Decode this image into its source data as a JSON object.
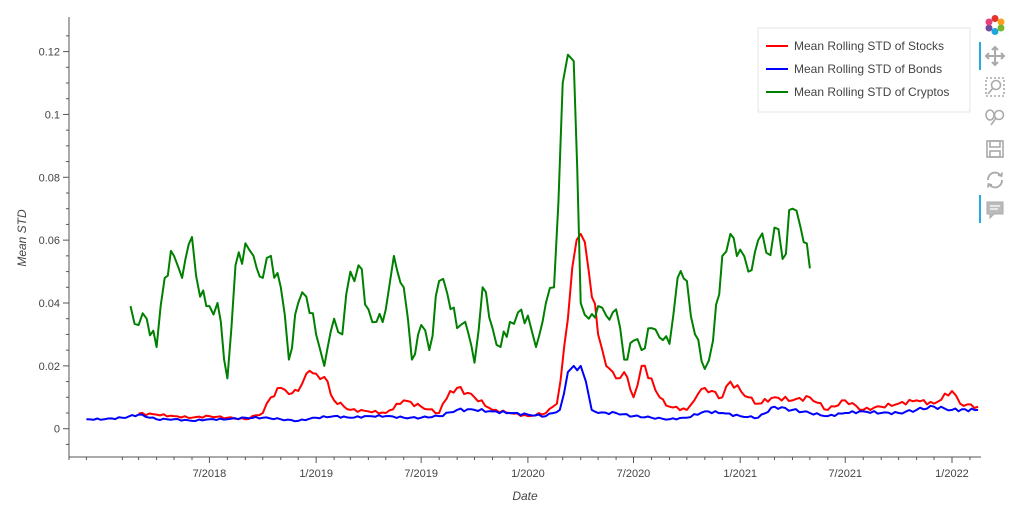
{
  "chart_data": {
    "type": "line",
    "xlabel": "Date",
    "ylabel": "Mean STD",
    "xlim": [
      "2017-11-01",
      "2022-02-20"
    ],
    "ylim": [
      -0.009,
      0.131
    ],
    "x_ticks": [
      "7/2018",
      "1/2019",
      "7/2019",
      "1/2020",
      "7/2020",
      "1/2021",
      "7/2021",
      "1/2022"
    ],
    "y_ticks": [
      "0",
      "0.02",
      "0.04",
      "0.06",
      "0.08",
      "0.1",
      "0.12"
    ],
    "legend_position": "top-right",
    "grid": false,
    "series": [
      {
        "name": "Mean Rolling STD of Stocks",
        "color": "#ff0000",
        "points": [
          [
            "2018-03-01",
            0.0048
          ],
          [
            "2018-04-01",
            0.0045
          ],
          [
            "2018-05-01",
            0.004
          ],
          [
            "2018-06-01",
            0.0035
          ],
          [
            "2018-07-01",
            0.004
          ],
          [
            "2018-08-01",
            0.0035
          ],
          [
            "2018-09-01",
            0.003
          ],
          [
            "2018-10-01",
            0.005
          ],
          [
            "2018-10-15",
            0.01
          ],
          [
            "2018-11-01",
            0.013
          ],
          [
            "2018-11-15",
            0.011
          ],
          [
            "2018-12-01",
            0.012
          ],
          [
            "2018-12-15",
            0.0175
          ],
          [
            "2019-01-01",
            0.0175
          ],
          [
            "2019-01-15",
            0.0165
          ],
          [
            "2019-02-01",
            0.009
          ],
          [
            "2019-03-01",
            0.006
          ],
          [
            "2019-04-01",
            0.0055
          ],
          [
            "2019-05-01",
            0.005
          ],
          [
            "2019-06-01",
            0.009
          ],
          [
            "2019-07-01",
            0.007
          ],
          [
            "2019-08-01",
            0.005
          ],
          [
            "2019-08-20",
            0.012
          ],
          [
            "2019-09-01",
            0.013
          ],
          [
            "2019-10-01",
            0.01
          ],
          [
            "2019-11-01",
            0.006
          ],
          [
            "2019-12-01",
            0.005
          ],
          [
            "2020-01-01",
            0.004
          ],
          [
            "2020-02-01",
            0.005
          ],
          [
            "2020-02-20",
            0.008
          ],
          [
            "2020-03-10",
            0.035
          ],
          [
            "2020-03-25",
            0.06
          ],
          [
            "2020-04-01",
            0.062
          ],
          [
            "2020-04-15",
            0.05
          ],
          [
            "2020-05-01",
            0.03
          ],
          [
            "2020-05-15",
            0.02
          ],
          [
            "2020-06-01",
            0.016
          ],
          [
            "2020-06-15",
            0.018
          ],
          [
            "2020-07-01",
            0.01
          ],
          [
            "2020-07-15",
            0.02
          ],
          [
            "2020-08-01",
            0.016
          ],
          [
            "2020-08-15",
            0.01
          ],
          [
            "2020-09-01",
            0.007
          ],
          [
            "2020-10-01",
            0.006
          ],
          [
            "2020-10-20",
            0.011
          ],
          [
            "2020-11-01",
            0.013
          ],
          [
            "2020-12-01",
            0.01
          ],
          [
            "2020-12-15",
            0.015
          ],
          [
            "2021-01-15",
            0.01
          ],
          [
            "2021-02-01",
            0.008
          ],
          [
            "2021-03-01",
            0.01
          ],
          [
            "2021-04-01",
            0.009
          ],
          [
            "2021-05-01",
            0.01
          ],
          [
            "2021-06-01",
            0.006
          ],
          [
            "2021-07-01",
            0.009
          ],
          [
            "2021-08-01",
            0.006
          ],
          [
            "2021-09-01",
            0.007
          ],
          [
            "2021-10-01",
            0.008
          ],
          [
            "2021-11-01",
            0.009
          ],
          [
            "2021-12-01",
            0.008
          ],
          [
            "2022-01-01",
            0.012
          ],
          [
            "2022-01-15",
            0.008
          ],
          [
            "2022-02-15",
            0.007
          ]
        ]
      },
      {
        "name": "Mean Rolling STD of Bonds",
        "color": "#0000ff",
        "points": [
          [
            "2017-12-01",
            0.003
          ],
          [
            "2018-01-01",
            0.003
          ],
          [
            "2018-02-01",
            0.0035
          ],
          [
            "2018-03-01",
            0.0045
          ],
          [
            "2018-04-01",
            0.003
          ],
          [
            "2018-05-01",
            0.003
          ],
          [
            "2018-06-01",
            0.0025
          ],
          [
            "2018-07-01",
            0.003
          ],
          [
            "2018-08-01",
            0.003
          ],
          [
            "2018-09-01",
            0.0035
          ],
          [
            "2018-10-01",
            0.0035
          ],
          [
            "2018-11-01",
            0.003
          ],
          [
            "2018-12-01",
            0.0025
          ],
          [
            "2019-01-01",
            0.0035
          ],
          [
            "2019-02-01",
            0.004
          ],
          [
            "2019-03-01",
            0.0035
          ],
          [
            "2019-04-01",
            0.004
          ],
          [
            "2019-05-01",
            0.004
          ],
          [
            "2019-06-01",
            0.0035
          ],
          [
            "2019-07-01",
            0.0035
          ],
          [
            "2019-08-01",
            0.004
          ],
          [
            "2019-09-01",
            0.006
          ],
          [
            "2019-10-01",
            0.006
          ],
          [
            "2019-11-01",
            0.0055
          ],
          [
            "2019-12-01",
            0.005
          ],
          [
            "2020-01-01",
            0.0045
          ],
          [
            "2020-02-01",
            0.004
          ],
          [
            "2020-02-25",
            0.006
          ],
          [
            "2020-03-10",
            0.018
          ],
          [
            "2020-03-20",
            0.02
          ],
          [
            "2020-04-01",
            0.02
          ],
          [
            "2020-04-10",
            0.015
          ],
          [
            "2020-04-20",
            0.006
          ],
          [
            "2020-05-01",
            0.005
          ],
          [
            "2020-06-01",
            0.005
          ],
          [
            "2020-07-01",
            0.004
          ],
          [
            "2020-08-01",
            0.0035
          ],
          [
            "2020-09-01",
            0.003
          ],
          [
            "2020-10-01",
            0.0035
          ],
          [
            "2020-11-01",
            0.0055
          ],
          [
            "2020-12-01",
            0.005
          ],
          [
            "2021-01-01",
            0.004
          ],
          [
            "2021-02-01",
            0.0035
          ],
          [
            "2021-03-01",
            0.007
          ],
          [
            "2021-04-01",
            0.006
          ],
          [
            "2021-05-01",
            0.005
          ],
          [
            "2021-06-01",
            0.004
          ],
          [
            "2021-07-01",
            0.005
          ],
          [
            "2021-08-01",
            0.0055
          ],
          [
            "2021-09-01",
            0.005
          ],
          [
            "2021-10-01",
            0.005
          ],
          [
            "2021-11-01",
            0.006
          ],
          [
            "2021-12-01",
            0.007
          ],
          [
            "2022-01-01",
            0.006
          ],
          [
            "2022-02-15",
            0.006
          ]
        ]
      },
      {
        "name": "Mean Rolling STD of Cryptos",
        "color": "#008000",
        "points": [
          [
            "2018-02-15",
            0.039
          ],
          [
            "2018-03-01",
            0.033
          ],
          [
            "2018-03-15",
            0.035
          ],
          [
            "2018-04-01",
            0.026
          ],
          [
            "2018-04-15",
            0.048
          ],
          [
            "2018-05-01",
            0.055
          ],
          [
            "2018-05-15",
            0.048
          ],
          [
            "2018-06-01",
            0.061
          ],
          [
            "2018-06-15",
            0.042
          ],
          [
            "2018-07-01",
            0.039
          ],
          [
            "2018-07-15",
            0.04
          ],
          [
            "2018-08-01",
            0.016
          ],
          [
            "2018-08-15",
            0.052
          ],
          [
            "2018-09-01",
            0.059
          ],
          [
            "2018-09-15",
            0.055
          ],
          [
            "2018-10-01",
            0.048
          ],
          [
            "2018-10-15",
            0.055
          ],
          [
            "2018-11-01",
            0.045
          ],
          [
            "2018-11-15",
            0.022
          ],
          [
            "2018-12-01",
            0.04
          ],
          [
            "2018-12-15",
            0.042
          ],
          [
            "2019-01-01",
            0.03
          ],
          [
            "2019-01-15",
            0.02
          ],
          [
            "2019-02-01",
            0.035
          ],
          [
            "2019-02-15",
            0.03
          ],
          [
            "2019-03-01",
            0.05
          ],
          [
            "2019-03-15",
            0.052
          ],
          [
            "2019-04-01",
            0.038
          ],
          [
            "2019-04-15",
            0.034
          ],
          [
            "2019-05-01",
            0.038
          ],
          [
            "2019-05-15",
            0.055
          ],
          [
            "2019-06-01",
            0.045
          ],
          [
            "2019-06-15",
            0.022
          ],
          [
            "2019-07-01",
            0.033
          ],
          [
            "2019-07-15",
            0.025
          ],
          [
            "2019-08-01",
            0.047
          ],
          [
            "2019-08-15",
            0.043
          ],
          [
            "2019-09-01",
            0.032
          ],
          [
            "2019-09-15",
            0.034
          ],
          [
            "2019-10-01",
            0.021
          ],
          [
            "2019-10-15",
            0.045
          ],
          [
            "2019-11-01",
            0.032
          ],
          [
            "2019-11-15",
            0.026
          ],
          [
            "2019-12-01",
            0.034
          ],
          [
            "2019-12-15",
            0.037
          ],
          [
            "2020-01-01",
            0.036
          ],
          [
            "2020-01-15",
            0.026
          ],
          [
            "2020-02-01",
            0.04
          ],
          [
            "2020-02-15",
            0.045
          ],
          [
            "2020-03-01",
            0.11
          ],
          [
            "2020-03-10",
            0.119
          ],
          [
            "2020-03-20",
            0.117
          ],
          [
            "2020-04-01",
            0.04
          ],
          [
            "2020-04-15",
            0.035
          ],
          [
            "2020-05-01",
            0.039
          ],
          [
            "2020-05-15",
            0.036
          ],
          [
            "2020-06-01",
            0.038
          ],
          [
            "2020-06-15",
            0.022
          ],
          [
            "2020-07-01",
            0.028
          ],
          [
            "2020-07-15",
            0.025
          ],
          [
            "2020-08-01",
            0.032
          ],
          [
            "2020-08-15",
            0.029
          ],
          [
            "2020-09-01",
            0.027
          ],
          [
            "2020-09-15",
            0.048
          ],
          [
            "2020-10-01",
            0.047
          ],
          [
            "2020-10-15",
            0.03
          ],
          [
            "2020-11-01",
            0.019
          ],
          [
            "2020-11-15",
            0.028
          ],
          [
            "2020-12-01",
            0.055
          ],
          [
            "2020-12-15",
            0.062
          ],
          [
            "2021-01-01",
            0.057
          ],
          [
            "2021-01-15",
            0.05
          ],
          [
            "2021-02-01",
            0.06
          ],
          [
            "2021-02-15",
            0.056
          ],
          [
            "2021-03-01",
            0.064
          ],
          [
            "2021-03-15",
            0.054
          ],
          [
            "2021-04-01",
            0.07
          ],
          [
            "2021-04-15",
            0.064
          ],
          [
            "2021-05-01",
            0.051
          ]
        ]
      }
    ]
  },
  "toolbar": {
    "logo_icon": "bokeh-logo-icon",
    "tools": [
      "pan-icon",
      "box-zoom-icon",
      "wheel-zoom-icon",
      "save-icon",
      "reset-icon",
      "hover-icon"
    ]
  }
}
